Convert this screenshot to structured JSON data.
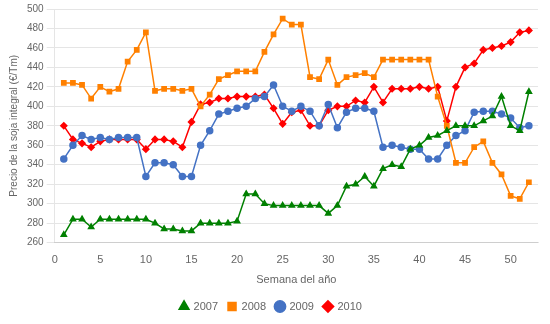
{
  "chart_data": {
    "type": "line",
    "xlabel": "Semana del año",
    "ylabel": "Precio de la soja integral (€/Tm)",
    "x": [
      1,
      2,
      3,
      4,
      5,
      6,
      7,
      8,
      9,
      10,
      11,
      12,
      13,
      14,
      15,
      16,
      17,
      18,
      19,
      20,
      21,
      22,
      23,
      24,
      25,
      26,
      27,
      28,
      29,
      30,
      31,
      32,
      33,
      34,
      35,
      36,
      37,
      38,
      39,
      40,
      41,
      42,
      43,
      44,
      45,
      46,
      47,
      48,
      49,
      50,
      51,
      52
    ],
    "series": [
      {
        "name": "2007",
        "color": "#008000",
        "marker": "triangle",
        "values": [
          268,
          284,
          284,
          276,
          284,
          284,
          284,
          284,
          284,
          284,
          280,
          274,
          274,
          272,
          272,
          280,
          280,
          280,
          280,
          282,
          310,
          310,
          300,
          298,
          298,
          298,
          298,
          298,
          298,
          290,
          298,
          318,
          320,
          328,
          318,
          336,
          340,
          338,
          356,
          360,
          368,
          370,
          375,
          380,
          380,
          380,
          385,
          390,
          410,
          380,
          375,
          415
        ]
      },
      {
        "name": "2008",
        "color": "#FF8000",
        "marker": "square",
        "values": [
          424,
          424,
          422,
          408,
          420,
          415,
          418,
          446,
          458,
          476,
          416,
          418,
          418,
          416,
          418,
          400,
          412,
          428,
          432,
          436,
          436,
          436,
          456,
          474,
          490,
          484,
          484,
          430,
          428,
          448,
          422,
          430,
          432,
          434,
          430,
          448,
          448,
          448,
          448,
          448,
          448,
          410,
          380,
          342,
          342,
          358,
          364,
          342,
          330,
          308,
          305,
          322
        ]
      },
      {
        "name": "2009",
        "color": "#4472C4",
        "marker": "circle",
        "values": [
          346,
          360,
          370,
          366,
          368,
          366,
          368,
          368,
          368,
          328,
          342,
          342,
          340,
          328,
          328,
          360,
          375,
          392,
          395,
          398,
          400,
          408,
          410,
          422,
          400,
          395,
          400,
          395,
          380,
          402,
          378,
          394,
          398,
          398,
          395,
          358,
          360,
          358,
          356,
          356,
          346,
          346,
          360,
          370,
          375,
          394,
          395,
          395,
          392,
          388,
          378,
          380
        ]
      },
      {
        "name": "2010",
        "color": "#FF0000",
        "marker": "diamond",
        "values": [
          380,
          366,
          362,
          358,
          364,
          366,
          366,
          366,
          366,
          356,
          366,
          366,
          364,
          358,
          384,
          402,
          404,
          408,
          408,
          410,
          410,
          410,
          412,
          398,
          382,
          394,
          396,
          380,
          380,
          396,
          400,
          400,
          406,
          404,
          420,
          404,
          418,
          418,
          418,
          420,
          418,
          420,
          385,
          420,
          440,
          444,
          458,
          460,
          462,
          466,
          476,
          478
        ]
      }
    ],
    "xlim": [
      0,
      53
    ],
    "xticks": [
      0,
      5,
      10,
      15,
      20,
      25,
      30,
      35,
      40,
      45,
      50
    ],
    "ylim": [
      260,
      500
    ],
    "yticks": [
      260,
      280,
      300,
      320,
      340,
      360,
      380,
      400,
      420,
      440,
      460,
      480,
      500
    ],
    "grid": "y",
    "legend": "bottom"
  }
}
